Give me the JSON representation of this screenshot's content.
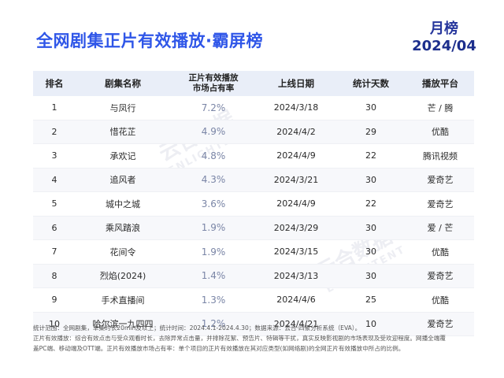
{
  "header": {
    "title": "全网剧集正片有效播放·霸屏榜",
    "badge_line1": "月榜",
    "badge_line2": "2024/04"
  },
  "table": {
    "columns": [
      "排名",
      "剧集名称",
      "正片有效播放\n市场占有率",
      "上线日期",
      "统计天数",
      "播放平台"
    ],
    "rows": [
      {
        "rank": "1",
        "name": "与凤行",
        "share": "7.2%",
        "date": "2024/3/18",
        "days": "30",
        "platform": "芒 / 腾"
      },
      {
        "rank": "2",
        "name": "惜花芷",
        "share": "4.9%",
        "date": "2024/4/2",
        "days": "29",
        "platform": "优酷"
      },
      {
        "rank": "3",
        "name": "承欢记",
        "share": "4.8%",
        "date": "2024/4/9",
        "days": "22",
        "platform": "腾讯视频"
      },
      {
        "rank": "4",
        "name": "追风者",
        "share": "4.3%",
        "date": "2024/3/21",
        "days": "30",
        "platform": "爱奇艺"
      },
      {
        "rank": "5",
        "name": "城中之城",
        "share": "3.6%",
        "date": "2024/4/9",
        "days": "22",
        "platform": "爱奇艺"
      },
      {
        "rank": "6",
        "name": "乘风踏浪",
        "share": "1.9%",
        "date": "2024/3/29",
        "days": "30",
        "platform": "爱 / 芒"
      },
      {
        "rank": "7",
        "name": "花间令",
        "share": "1.9%",
        "date": "2024/3/15",
        "days": "30",
        "platform": "优酷"
      },
      {
        "rank": "8",
        "name": "烈焰(2024)",
        "share": "1.4%",
        "date": "2024/3/13",
        "days": "30",
        "platform": "爱奇艺"
      },
      {
        "rank": "9",
        "name": "手术直播间",
        "share": "1.3%",
        "date": "2024/4/6",
        "days": "25",
        "platform": "优酷"
      },
      {
        "rank": "10",
        "name": "哈尔滨一九四四",
        "share": "1.2%",
        "date": "2024/4/21",
        "days": "10",
        "platform": "爱奇艺"
      }
    ]
  },
  "watermark": {
    "text": "云合数据",
    "sub": "ENLIGHTENT"
  },
  "footer": {
    "line1": "统计范围：全网剧集，单集时长20min及以上；统计时间：2024.4.1-2024.4.30；数据来源：云合·四象分析系统（EVA）。",
    "line2": "正片有效播放：综合有效点击与受众观看时长，去除异常点击量，并排除花絮、预告片、特辑等干扰，真实反映影视剧的市场表现及受欢迎程度。网播全端覆",
    "line3": "盖PC端、移动端及OTT端。正片有效播放市场占有率：单个项目的正片有效播放在其对应类型(如网络剧)的全网正片有效播放中所占的比例。"
  }
}
